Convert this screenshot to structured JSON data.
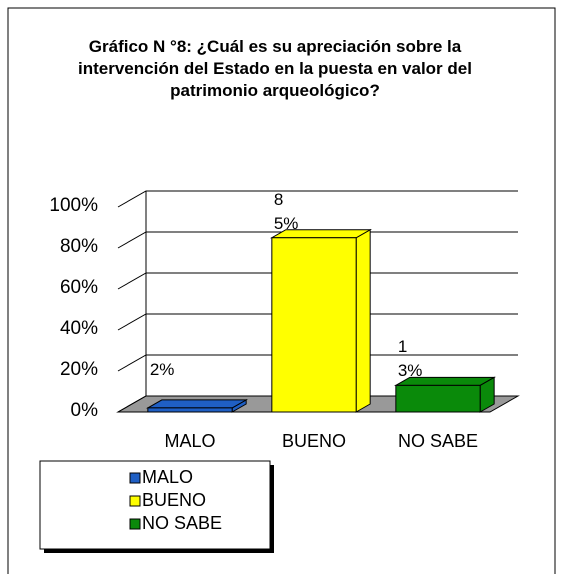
{
  "chart_data": {
    "type": "bar3d",
    "title": "Gráfico N °8: ¿Cuál es su apreciación sobre la intervención del Estado en la puesta en valor del patrimonio arqueológico?",
    "categories": [
      "MALO",
      "BUENO",
      "NO SABE"
    ],
    "values": [
      2,
      85,
      13
    ],
    "value_labels": [
      "2%",
      "85%",
      "13%"
    ],
    "colors": [
      "#1f5fc4",
      "#ffff00",
      "#0a8a0a"
    ],
    "ylim": [
      0,
      100
    ],
    "yticks": [
      {
        "value": 0,
        "label": "0%"
      },
      {
        "value": 20,
        "label": "20%"
      },
      {
        "value": 40,
        "label": "40%"
      },
      {
        "value": 60,
        "label": "60%"
      },
      {
        "value": 80,
        "label": "80%"
      },
      {
        "value": 100,
        "label": "100%"
      }
    ],
    "grid": true,
    "legend": "bottom-left"
  }
}
